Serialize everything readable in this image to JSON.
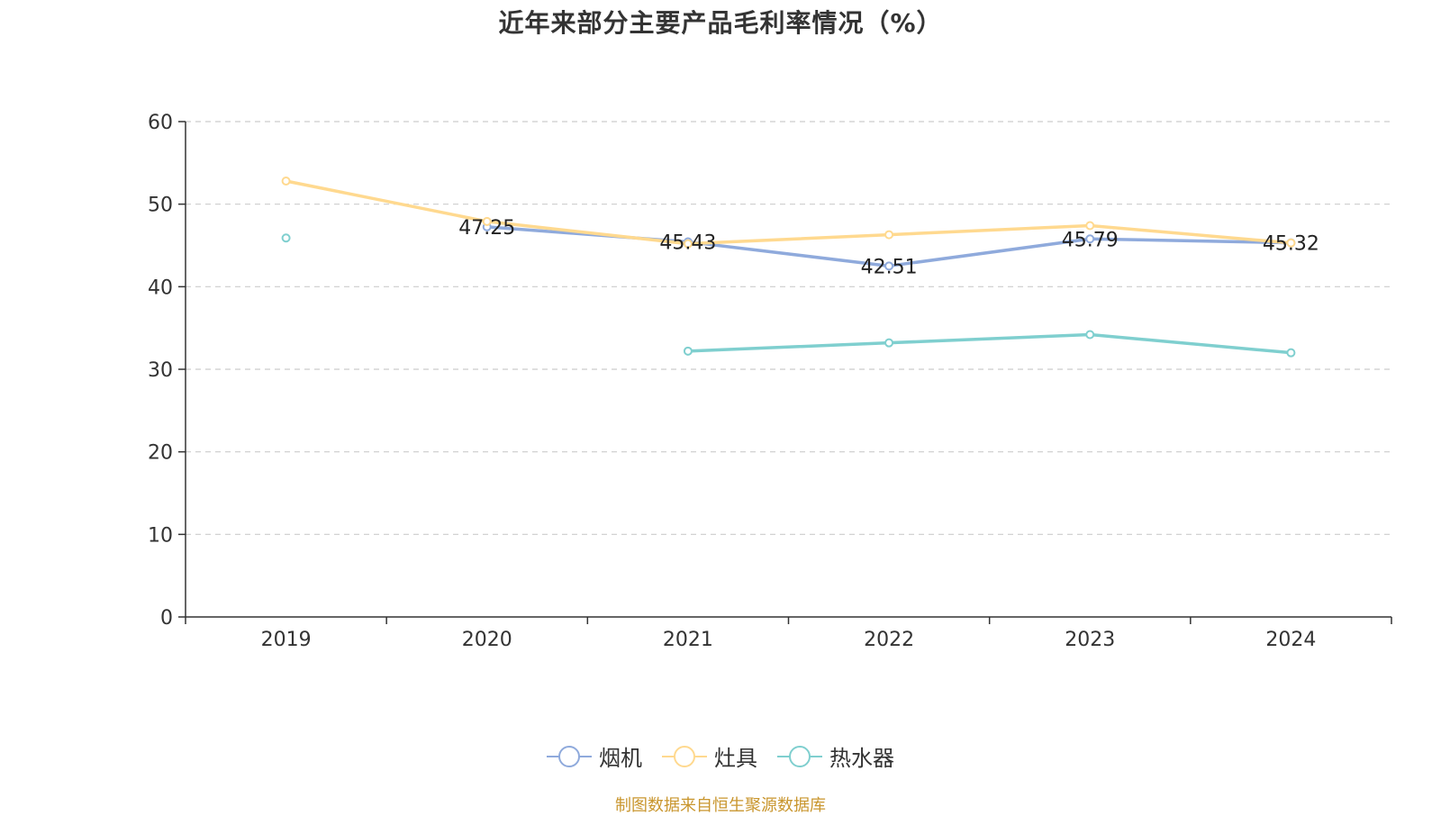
{
  "chart_data": {
    "type": "line",
    "title": "近年来部分主要产品毛利率情况（%）",
    "categories": [
      "2019",
      "2020",
      "2021",
      "2022",
      "2023",
      "2024"
    ],
    "ylim": [
      0,
      60
    ],
    "yticks": [
      0,
      10,
      20,
      30,
      40,
      50,
      60
    ],
    "grid": true,
    "legend_position": "bottom",
    "series": [
      {
        "name": "烟机",
        "color": "#8faadc",
        "values": [
          null,
          47.25,
          45.43,
          42.51,
          45.79,
          45.32
        ],
        "labels": [
          "",
          "47.25",
          "45.43",
          "42.51",
          "45.79",
          "45.32"
        ]
      },
      {
        "name": "灶具",
        "color": "#ffd98f",
        "values": [
          52.8,
          47.9,
          45.2,
          46.3,
          47.4,
          45.3
        ],
        "labels": [
          "",
          "",
          "",
          "",
          "",
          ""
        ]
      },
      {
        "name": "热水器",
        "color": "#7fcfcf",
        "values": [
          45.9,
          null,
          32.2,
          33.2,
          34.2,
          32.0
        ],
        "labels": [
          "",
          "",
          "",
          "",
          "",
          ""
        ]
      }
    ]
  },
  "source": "制图数据来自恒生聚源数据库"
}
